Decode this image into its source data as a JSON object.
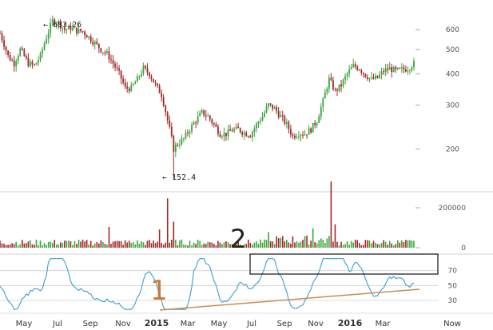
{
  "chart_data": [
    {
      "type": "candlestick",
      "y_scale": "log",
      "ylim": [
        140,
        760
      ],
      "y_ticks": [
        600,
        500,
        400,
        300,
        200
      ],
      "x_ticks": [
        "May",
        "Jul",
        "Sep",
        "Nov",
        "2015",
        "Mar",
        "May",
        "Jul",
        "Sep",
        "Nov",
        "2016",
        "Mar",
        "Now"
      ],
      "colors": {
        "up": "#3aa63a",
        "down": "#a02828"
      },
      "annotations": [
        {
          "text": "← 683.26",
          "value": 683.26
        },
        {
          "text": "← 152.4",
          "value": 152.4
        }
      ],
      "close_series": [
        {
          "t": 0,
          "v": 580
        },
        {
          "t": 4,
          "v": 470
        },
        {
          "t": 7,
          "v": 440
        },
        {
          "t": 10,
          "v": 500
        },
        {
          "t": 14,
          "v": 440
        },
        {
          "t": 17,
          "v": 430
        },
        {
          "t": 20,
          "v": 470
        },
        {
          "t": 23,
          "v": 560
        },
        {
          "t": 26,
          "v": 650
        },
        {
          "t": 29,
          "v": 640
        },
        {
          "t": 32,
          "v": 600
        },
        {
          "t": 35,
          "v": 610
        },
        {
          "t": 38,
          "v": 595
        },
        {
          "t": 41,
          "v": 590
        },
        {
          "t": 44,
          "v": 560
        },
        {
          "t": 47,
          "v": 530
        },
        {
          "t": 50,
          "v": 500
        },
        {
          "t": 53,
          "v": 480
        },
        {
          "t": 56,
          "v": 440
        },
        {
          "t": 59,
          "v": 400
        },
        {
          "t": 62,
          "v": 350
        },
        {
          "t": 65,
          "v": 350
        },
        {
          "t": 68,
          "v": 380
        },
        {
          "t": 71,
          "v": 420
        },
        {
          "t": 74,
          "v": 400
        },
        {
          "t": 77,
          "v": 360
        },
        {
          "t": 80,
          "v": 330
        },
        {
          "t": 83,
          "v": 260
        },
        {
          "t": 86,
          "v": 200
        },
        {
          "t": 88,
          "v": 210
        },
        {
          "t": 91,
          "v": 220
        },
        {
          "t": 94,
          "v": 240
        },
        {
          "t": 97,
          "v": 260
        },
        {
          "t": 100,
          "v": 280
        },
        {
          "t": 103,
          "v": 270
        },
        {
          "t": 106,
          "v": 250
        },
        {
          "t": 109,
          "v": 230
        },
        {
          "t": 112,
          "v": 230
        },
        {
          "t": 115,
          "v": 238
        },
        {
          "t": 118,
          "v": 240
        },
        {
          "t": 121,
          "v": 232
        },
        {
          "t": 124,
          "v": 228
        },
        {
          "t": 127,
          "v": 250
        },
        {
          "t": 130,
          "v": 270
        },
        {
          "t": 133,
          "v": 300
        },
        {
          "t": 136,
          "v": 290
        },
        {
          "t": 139,
          "v": 270
        },
        {
          "t": 142,
          "v": 250
        },
        {
          "t": 145,
          "v": 225
        },
        {
          "t": 148,
          "v": 232
        },
        {
          "t": 151,
          "v": 230
        },
        {
          "t": 154,
          "v": 240
        },
        {
          "t": 157,
          "v": 260
        },
        {
          "t": 160,
          "v": 310
        },
        {
          "t": 163,
          "v": 380
        },
        {
          "t": 166,
          "v": 340
        },
        {
          "t": 169,
          "v": 360
        },
        {
          "t": 172,
          "v": 400
        },
        {
          "t": 175,
          "v": 430
        },
        {
          "t": 178,
          "v": 420
        },
        {
          "t": 181,
          "v": 395
        },
        {
          "t": 184,
          "v": 380
        },
        {
          "t": 187,
          "v": 385
        },
        {
          "t": 190,
          "v": 410
        },
        {
          "t": 193,
          "v": 420
        },
        {
          "t": 196,
          "v": 410
        },
        {
          "t": 199,
          "v": 415
        },
        {
          "t": 202,
          "v": 420
        },
        {
          "t": 205,
          "v": 440
        }
      ]
    },
    {
      "type": "bar",
      "series_name": "volume",
      "ylim": [
        0,
        260000
      ],
      "y_ticks": [
        200000,
        0
      ],
      "y_tick_labels": [
        "200000",
        "0"
      ]
    },
    {
      "type": "line",
      "series_name": "oscillator",
      "ylim": [
        15,
        90
      ],
      "y_ticks": [
        70,
        50,
        30
      ],
      "annotations": [
        {
          "text": "1"
        },
        {
          "text": "2"
        }
      ]
    }
  ]
}
